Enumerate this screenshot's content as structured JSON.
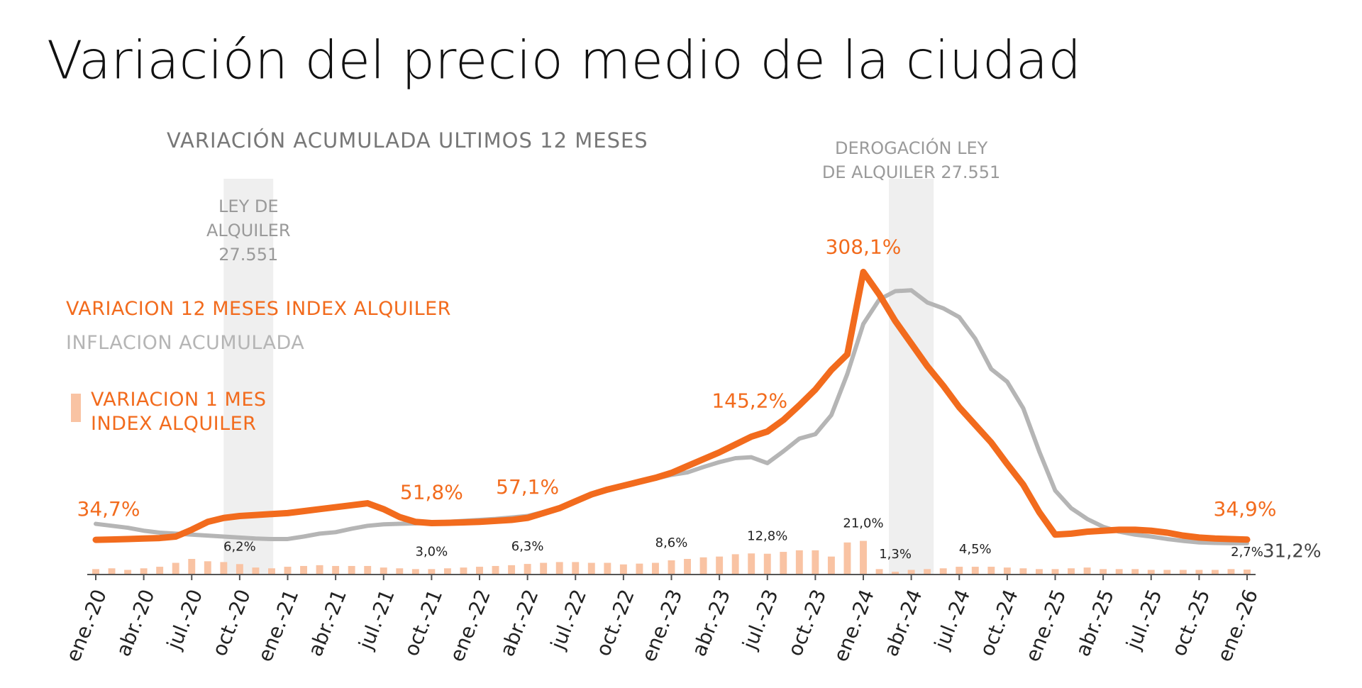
{
  "chart_data": {
    "type": "line",
    "title": "Variación del precio medio de la ciudad",
    "subtitle": "VARIACIÓN ACUMULADA ULTIMOS 12 MESES",
    "annotations": [
      {
        "lines": [
          "LEY DE",
          "ALQUILER",
          "27.551"
        ]
      },
      {
        "lines": [
          "DEROGACIÓN LEY",
          "DE ALQUILER 27.551"
        ]
      }
    ],
    "categories": [
      "ene.-20",
      null,
      null,
      "abr.-20",
      null,
      null,
      "jul.-20",
      null,
      null,
      "oct.-20",
      null,
      null,
      "ene.-21",
      null,
      null,
      "abr.-21",
      null,
      null,
      "jul.-21",
      null,
      null,
      "oct.-21",
      null,
      null,
      "ene.-22",
      null,
      null,
      "abr.-22",
      null,
      null,
      "jul.-22",
      null,
      null,
      "oct.-22",
      null,
      null,
      "ene.-23",
      null,
      null,
      "abr.-23",
      null,
      null,
      "jul.-23",
      null,
      null,
      "oct.-23",
      null,
      null,
      "ene.-24",
      null,
      null,
      "abr.-24",
      null,
      null,
      "jul.-24",
      null,
      null,
      "oct.-24",
      null,
      null,
      "ene.-25",
      null,
      null,
      "abr.-25",
      null,
      null,
      "jul.-25",
      null,
      null,
      "oct.-25",
      null,
      null,
      "ene.-26"
    ],
    "ylim": [
      0,
      320
    ],
    "y2lim": [
      0,
      200
    ],
    "legend": "left",
    "series": [
      {
        "name": "VARIACION 12 MESES INDEX ALQUILER",
        "type": "line",
        "color": "#f26b1d",
        "values": [
          34.7,
          35,
          35.5,
          36,
          36.5,
          38,
          45,
          53,
          57,
          59,
          60,
          61,
          62,
          64,
          66,
          68,
          70,
          72,
          66,
          58,
          53,
          51.8,
          52,
          52.5,
          53,
          54,
          55,
          57.1,
          62,
          67,
          74,
          81,
          86,
          90,
          94,
          98,
          103,
          110,
          117,
          124,
          132,
          140,
          145.2,
          157,
          172,
          188,
          208,
          224,
          308.1,
          285,
          258,
          235,
          212,
          192,
          170,
          152,
          134,
          112,
          91,
          63,
          40,
          41,
          43,
          44,
          45,
          45,
          44,
          42,
          39,
          37,
          36,
          35.5,
          34.9
        ],
        "value_labels": [
          "34,7%",
          null,
          null,
          null,
          null,
          null,
          null,
          null,
          null,
          null,
          null,
          null,
          null,
          null,
          null,
          null,
          null,
          null,
          null,
          null,
          null,
          "51,8%",
          null,
          null,
          null,
          null,
          null,
          "57,1%",
          null,
          null,
          null,
          null,
          null,
          null,
          null,
          null,
          null,
          null,
          null,
          null,
          null,
          null,
          "145,2%",
          null,
          null,
          null,
          null,
          null,
          "308,1%",
          null,
          null,
          null,
          null,
          null,
          null,
          null,
          null,
          null,
          null,
          null,
          null,
          null,
          null,
          null,
          null,
          null,
          null,
          null,
          null,
          null,
          null,
          null,
          "34,9%"
        ]
      },
      {
        "name": "INFLACION ACUMULADA",
        "type": "line",
        "color": "#b5b5b5",
        "values": [
          51,
          49,
          47,
          44,
          42,
          41,
          40,
          39,
          38,
          37,
          36,
          35.5,
          35.5,
          38,
          41,
          42.5,
          46,
          49,
          50.5,
          51,
          51.5,
          52,
          53,
          54,
          55,
          56,
          57.5,
          59,
          63,
          67,
          73.5,
          80.5,
          85,
          89,
          94,
          97,
          101,
          103.5,
          109,
          114,
          118,
          119,
          113,
          125,
          138,
          142.5,
          162,
          204,
          255,
          280,
          288.5,
          289.4,
          277,
          271,
          262,
          240,
          209,
          196,
          169,
          125,
          85,
          67,
          56,
          48,
          43,
          40,
          38,
          35.5,
          33.6,
          32,
          31.5,
          31.2,
          31.2
        ],
        "value_labels": [
          null,
          null,
          null,
          null,
          null,
          null,
          null,
          null,
          null,
          null,
          null,
          null,
          null,
          null,
          null,
          null,
          null,
          null,
          null,
          null,
          null,
          null,
          null,
          null,
          null,
          null,
          null,
          null,
          null,
          null,
          null,
          null,
          null,
          null,
          null,
          null,
          null,
          null,
          null,
          null,
          null,
          null,
          null,
          null,
          null,
          null,
          null,
          null,
          null,
          null,
          null,
          null,
          null,
          null,
          null,
          null,
          null,
          null,
          null,
          null,
          null,
          null,
          null,
          null,
          null,
          null,
          null,
          null,
          null,
          null,
          null,
          null,
          "31,2%"
        ]
      },
      {
        "name": "VARIACION 1 MES INDEX ALQUILER",
        "type": "bar",
        "axis": "y2",
        "color": "#f9c3a3",
        "values": [
          3,
          3.5,
          2.5,
          3.5,
          4.5,
          7,
          9.5,
          8,
          7.5,
          6.2,
          4,
          3.5,
          4.5,
          5,
          5.5,
          5,
          5,
          5,
          4,
          3.5,
          3,
          3.0,
          3.5,
          4,
          4.5,
          5,
          5.5,
          6.3,
          7,
          7.5,
          7.5,
          7,
          7,
          6,
          6.5,
          7,
          8.6,
          9.5,
          10.5,
          11,
          12.5,
          13,
          12.8,
          14,
          15,
          15,
          11,
          20,
          21.0,
          3,
          1.3,
          2.5,
          3,
          3.5,
          4.5,
          4.5,
          4.5,
          4,
          3.5,
          3,
          3,
          3.5,
          4,
          3,
          3,
          3,
          2.5,
          2.5,
          2.5,
          2.5,
          2.5,
          3,
          2.7
        ],
        "value_labels": [
          null,
          null,
          null,
          null,
          null,
          null,
          null,
          null,
          null,
          "6,2%",
          null,
          null,
          null,
          null,
          null,
          null,
          null,
          null,
          null,
          null,
          null,
          "3,0%",
          null,
          null,
          null,
          null,
          null,
          "6,3%",
          null,
          null,
          null,
          null,
          null,
          null,
          null,
          null,
          "8,6%",
          null,
          null,
          null,
          null,
          null,
          "12,8%",
          null,
          null,
          null,
          null,
          null,
          "21,0%",
          null,
          "1,3%",
          null,
          null,
          null,
          null,
          "4,5%",
          null,
          null,
          null,
          null,
          null,
          null,
          null,
          null,
          null,
          null,
          null,
          null,
          null,
          null,
          null,
          null,
          "2,7%"
        ]
      }
    ]
  }
}
